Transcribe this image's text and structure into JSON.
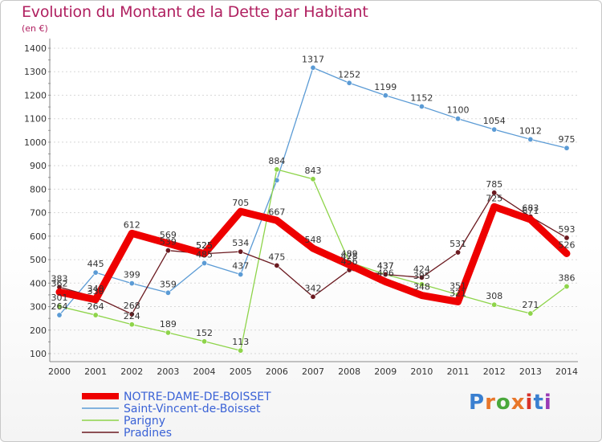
{
  "header": {
    "title": "Evolution du Montant de la Dette par Habitant",
    "unit": "(en €)"
  },
  "logo": {
    "text": "Proxiti"
  },
  "chart_data": {
    "type": "line",
    "title": "Evolution du Montant de la Dette par Habitant",
    "subtitle": "(en €)",
    "x": [
      "2000",
      "2001",
      "2002",
      "2003",
      "2004",
      "2005",
      "2006",
      "2007",
      "2008",
      "2009",
      "2010",
      "2011",
      "2012",
      "2013",
      "2014"
    ],
    "y_ticks": [
      "100",
      "200",
      "300",
      "400",
      "500",
      "600",
      "700",
      "800",
      "900",
      "1000",
      "1100",
      "1200",
      "1300",
      "1400"
    ],
    "ylim": [
      100,
      1400
    ],
    "grid": "horizontal dashed",
    "legend_position": "bottom-left",
    "series": [
      {
        "name": "NOTRE-DAME-DE-BOISSET",
        "color": "#ee0000",
        "values": [
          362,
          330,
          612,
          569,
          525,
          705,
          667,
          548,
          478,
          406,
          348,
          321,
          725,
          671,
          526
        ],
        "labels": [
          "362",
          "330",
          "612",
          "569",
          "525",
          "705",
          "667",
          "548",
          "478",
          "406",
          "348",
          "321",
          "725",
          "671",
          "526"
        ]
      },
      {
        "name": "Saint-Vincent-de-Boisset",
        "color": "#5b9bd5",
        "values": [
          264,
          445,
          399,
          359,
          485,
          437,
          838,
          1317,
          1252,
          1199,
          1152,
          1100,
          1054,
          1012,
          975
        ],
        "labels": [
          "264",
          "445",
          "399",
          "359",
          "485",
          "437",
          "",
          "1317",
          "1252",
          "1199",
          "1152",
          "1100",
          "1054",
          "1012",
          "975"
        ]
      },
      {
        "name": "Parigny",
        "color": "#8ed44a",
        "values": [
          301,
          264,
          224,
          189,
          152,
          113,
          884,
          843,
          489,
          437,
          395,
          351,
          308,
          271,
          386
        ],
        "labels": [
          "301",
          "264",
          "224",
          "189",
          "152",
          "113",
          "884",
          "843",
          "489",
          "437",
          "395",
          "351",
          "308",
          "271",
          "386"
        ]
      },
      {
        "name": "Pradines",
        "color": "#6b1a20",
        "values": [
          383,
          340,
          268,
          539,
          525,
          534,
          475,
          342,
          456,
          437,
          424,
          531,
          785,
          683,
          593
        ],
        "labels": [
          "383",
          "340",
          "268",
          "539",
          "525",
          "534",
          "475",
          "342",
          "456",
          "437",
          "424",
          "531",
          "785",
          "683",
          "593"
        ]
      }
    ]
  }
}
